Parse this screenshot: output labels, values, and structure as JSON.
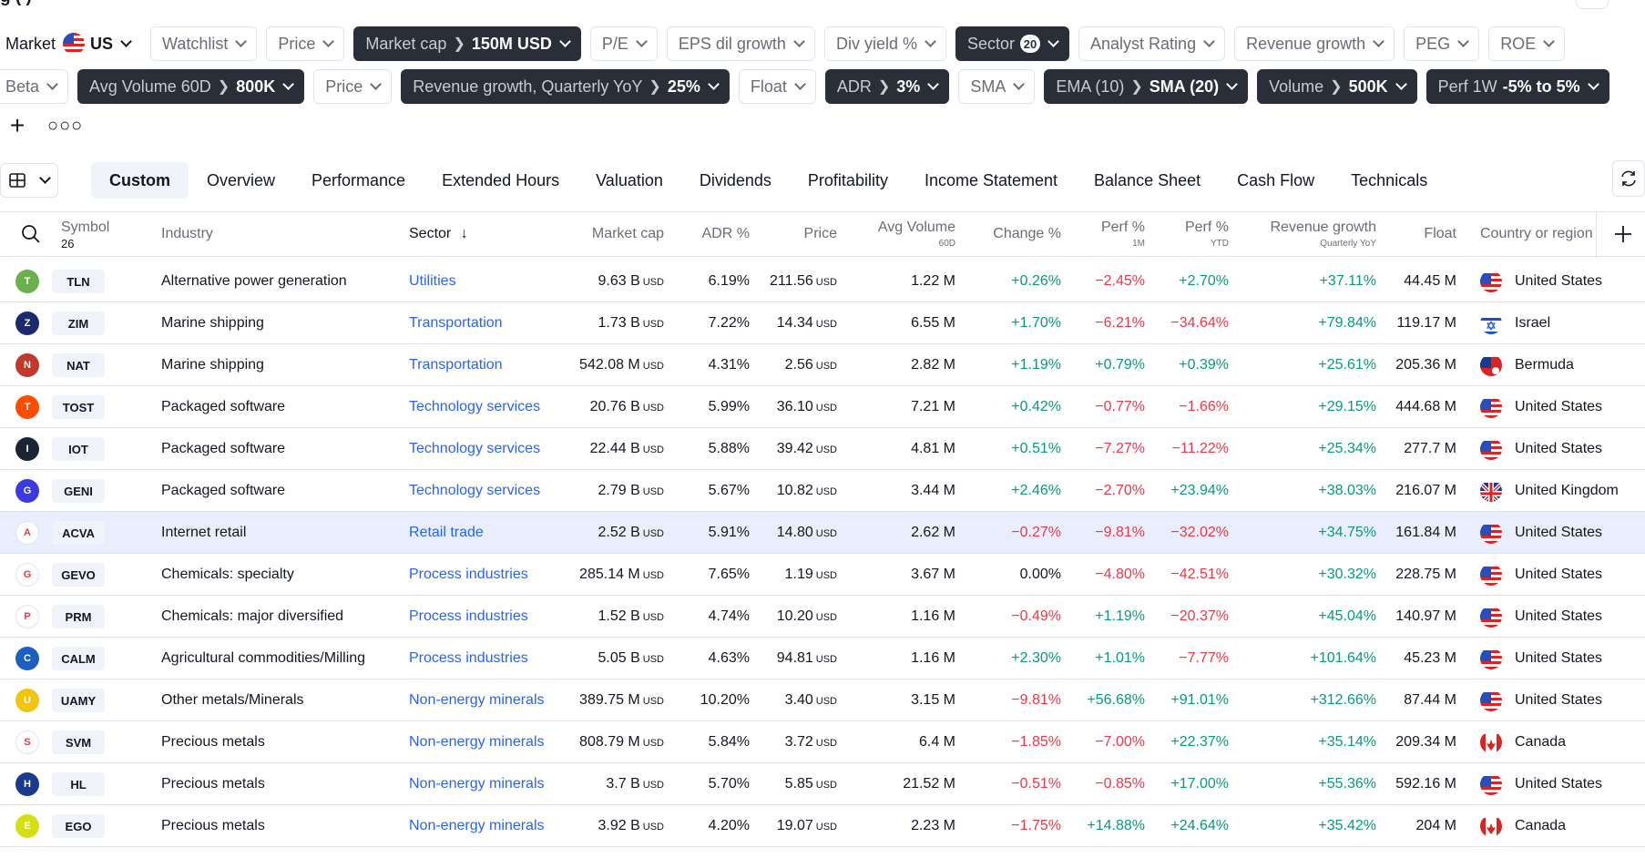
{
  "top": {
    "partial_title": "g          (          )  "
  },
  "filters": {
    "market_label": "Market",
    "market_value": "US",
    "row1": [
      {
        "label": "Watchlist",
        "active": false
      },
      {
        "label": "Price",
        "active": false
      },
      {
        "label": "Market cap",
        "value": "150M USD",
        "active": true
      },
      {
        "label": "P/E",
        "active": false
      },
      {
        "label": "EPS dil growth",
        "active": false
      },
      {
        "label": "Div yield %",
        "active": false
      },
      {
        "label": "Sector",
        "badge": "20",
        "active": true
      },
      {
        "label": "Analyst Rating",
        "active": false
      },
      {
        "label": "Revenue growth",
        "active": false
      },
      {
        "label": "PEG",
        "active": false
      },
      {
        "label": "ROE",
        "active": false
      }
    ],
    "row2": [
      {
        "label": "Beta",
        "active": false
      },
      {
        "label": "Avg Volume 60D",
        "value": "800K",
        "active": true
      },
      {
        "label": "Price",
        "active": false
      },
      {
        "label": "Revenue growth, Quarterly YoY",
        "value": "25%",
        "active": true
      },
      {
        "label": "Float",
        "active": false
      },
      {
        "label": "ADR",
        "value": "3%",
        "active": true
      },
      {
        "label": "SMA",
        "active": false
      },
      {
        "label": "EMA (10)",
        "value": "SMA (20)",
        "active": true
      },
      {
        "label": "Volume",
        "value": "500K",
        "active": true
      },
      {
        "label": "Perf 1W",
        "value": "-5% to 5%",
        "active": true,
        "nosep": true
      }
    ]
  },
  "tabs": [
    "Custom",
    "Overview",
    "Performance",
    "Extended Hours",
    "Valuation",
    "Dividends",
    "Profitability",
    "Income Statement",
    "Balance Sheet",
    "Cash Flow",
    "Technicals"
  ],
  "columns": {
    "symbol": "Symbol",
    "symbol_count": "26",
    "industry": "Industry",
    "sector": "Sector",
    "market_cap": "Market cap",
    "adr": "ADR %",
    "price": "Price",
    "avg_volume": "Avg Volume",
    "avg_volume_sub": "60D",
    "change": "Change %",
    "perf1m": "Perf %",
    "perf1m_sub": "1M",
    "perfytd": "Perf %",
    "perfytd_sub": "YTD",
    "rev_growth": "Revenue growth",
    "rev_growth_sub": "Quarterly YoY",
    "float": "Float",
    "country": "Country or region"
  },
  "rows": [
    {
      "sym": "TLN",
      "logo_color": "#6ab04c",
      "industry": "Alternative power generation",
      "sector": "Utilities",
      "mcap": "9.63 B",
      "cur": "USD",
      "adr": "6.19%",
      "price": "211.56",
      "vol": "1.22 M",
      "chg": "+0.26%",
      "p1m": "−2.45%",
      "pytd": "+2.70%",
      "rev": "+37.11%",
      "float": "44.45 M",
      "country": "United States",
      "flag": "us"
    },
    {
      "sym": "ZIM",
      "logo_color": "#1a2a6c",
      "industry": "Marine shipping",
      "sector": "Transportation",
      "mcap": "1.73 B",
      "cur": "USD",
      "adr": "7.22%",
      "price": "14.34",
      "vol": "6.55 M",
      "chg": "+1.70%",
      "p1m": "−6.21%",
      "pytd": "−34.64%",
      "rev": "+79.84%",
      "float": "119.17 M",
      "country": "Israel",
      "flag": "il"
    },
    {
      "sym": "NAT",
      "logo_color": "#c0392b",
      "industry": "Marine shipping",
      "sector": "Transportation",
      "mcap": "542.08 M",
      "cur": "USD",
      "adr": "4.31%",
      "price": "2.56",
      "vol": "2.82 M",
      "chg": "+1.19%",
      "p1m": "+0.79%",
      "pytd": "+0.39%",
      "rev": "+25.61%",
      "float": "205.36 M",
      "country": "Bermuda",
      "flag": "bm"
    },
    {
      "sym": "TOST",
      "logo_color": "#ff4c00",
      "industry": "Packaged software",
      "sector": "Technology services",
      "mcap": "20.76 B",
      "cur": "USD",
      "adr": "5.99%",
      "price": "36.10",
      "vol": "7.21 M",
      "chg": "+0.42%",
      "p1m": "−0.77%",
      "pytd": "−1.66%",
      "rev": "+29.15%",
      "float": "444.68 M",
      "country": "United States",
      "flag": "us"
    },
    {
      "sym": "IOT",
      "logo_color": "#1c2331",
      "industry": "Packaged software",
      "sector": "Technology services",
      "mcap": "22.44 B",
      "cur": "USD",
      "adr": "5.88%",
      "price": "39.42",
      "vol": "4.81 M",
      "chg": "+0.51%",
      "p1m": "−7.27%",
      "pytd": "−11.22%",
      "rev": "+25.34%",
      "float": "277.7 M",
      "country": "United States",
      "flag": "us"
    },
    {
      "sym": "GENI",
      "logo_color": "#3a3adf",
      "industry": "Packaged software",
      "sector": "Technology services",
      "mcap": "2.79 B",
      "cur": "USD",
      "adr": "5.67%",
      "price": "10.82",
      "vol": "3.44 M",
      "chg": "+2.46%",
      "p1m": "−2.70%",
      "pytd": "+23.94%",
      "rev": "+38.03%",
      "float": "216.07 M",
      "country": "United Kingdom",
      "flag": "gb"
    },
    {
      "sym": "ACVA",
      "logo_color": "#ffffff",
      "industry": "Internet retail",
      "sector": "Retail trade",
      "mcap": "2.52 B",
      "cur": "USD",
      "adr": "5.91%",
      "price": "14.80",
      "vol": "2.62 M",
      "chg": "−0.27%",
      "p1m": "−9.81%",
      "pytd": "−32.02%",
      "rev": "+34.75%",
      "float": "161.84 M",
      "country": "United States",
      "flag": "us",
      "highlight": true
    },
    {
      "sym": "GEVO",
      "logo_color": "#ffffff",
      "industry": "Chemicals: specialty",
      "sector": "Process industries",
      "mcap": "285.14 M",
      "cur": "USD",
      "adr": "7.65%",
      "price": "1.19",
      "vol": "3.67 M",
      "chg": "0.00%",
      "p1m": "−4.80%",
      "pytd": "−42.51%",
      "rev": "+30.32%",
      "float": "228.75 M",
      "country": "United States",
      "flag": "us"
    },
    {
      "sym": "PRM",
      "logo_color": "#ffffff",
      "industry": "Chemicals: major diversified",
      "sector": "Process industries",
      "mcap": "1.52 B",
      "cur": "USD",
      "adr": "4.74%",
      "price": "10.20",
      "vol": "1.16 M",
      "chg": "−0.49%",
      "p1m": "+1.19%",
      "pytd": "−20.37%",
      "rev": "+45.04%",
      "float": "140.97 M",
      "country": "United States",
      "flag": "us"
    },
    {
      "sym": "CALM",
      "logo_color": "#1d5fbf",
      "industry": "Agricultural commodities/Milling",
      "sector": "Process industries",
      "mcap": "5.05 B",
      "cur": "USD",
      "adr": "4.63%",
      "price": "94.81",
      "vol": "1.16 M",
      "chg": "+2.30%",
      "p1m": "+1.01%",
      "pytd": "−7.77%",
      "rev": "+101.64%",
      "float": "45.23 M",
      "country": "United States",
      "flag": "us"
    },
    {
      "sym": "UAMY",
      "logo_color": "#f1c40f",
      "industry": "Other metals/Minerals",
      "sector": "Non-energy minerals",
      "mcap": "389.75 M",
      "cur": "USD",
      "adr": "10.20%",
      "price": "3.40",
      "vol": "3.15 M",
      "chg": "−9.81%",
      "p1m": "+56.68%",
      "pytd": "+91.01%",
      "rev": "+312.66%",
      "float": "87.44 M",
      "country": "United States",
      "flag": "us"
    },
    {
      "sym": "SVM",
      "logo_color": "#ffffff",
      "industry": "Precious metals",
      "sector": "Non-energy minerals",
      "mcap": "808.79 M",
      "cur": "USD",
      "adr": "5.84%",
      "price": "3.72",
      "vol": "6.4 M",
      "chg": "−1.85%",
      "p1m": "−7.00%",
      "pytd": "+22.37%",
      "rev": "+35.14%",
      "float": "209.34 M",
      "country": "Canada",
      "flag": "ca"
    },
    {
      "sym": "HL",
      "logo_color": "#1a3a8c",
      "industry": "Precious metals",
      "sector": "Non-energy minerals",
      "mcap": "3.7 B",
      "cur": "USD",
      "adr": "5.70%",
      "price": "5.85",
      "vol": "21.52 M",
      "chg": "−0.51%",
      "p1m": "−0.85%",
      "pytd": "+17.00%",
      "rev": "+55.36%",
      "float": "592.16 M",
      "country": "United States",
      "flag": "us"
    },
    {
      "sym": "EGO",
      "logo_color": "#d4e014",
      "industry": "Precious metals",
      "sector": "Non-energy minerals",
      "mcap": "3.92 B",
      "cur": "USD",
      "adr": "4.20%",
      "price": "19.07",
      "vol": "2.23 M",
      "chg": "−1.75%",
      "p1m": "+14.88%",
      "pytd": "+24.64%",
      "rev": "+35.42%",
      "float": "204 M",
      "country": "Canada",
      "flag": "ca"
    }
  ],
  "colors": {
    "positive": "#089981",
    "negative": "#f23645",
    "sector_link": "#2962ff",
    "active_chip": "#2a2e39",
    "row_highlight": "#e8eefc"
  },
  "icons": [
    "us-flag-icon",
    "chevron-down-icon",
    "plus-icon",
    "more-icon",
    "table-view-icon",
    "refresh-icon",
    "search-icon",
    "sort-down-icon",
    "add-column-icon"
  ]
}
